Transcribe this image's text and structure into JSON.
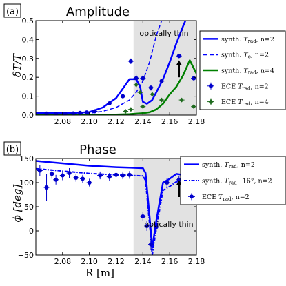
{
  "chart_data": [
    {
      "type": "line",
      "panel_label": "(a)",
      "title": "Amplitude",
      "xlabel": "R [m]",
      "ylabel": "δT/T",
      "xlim": [
        2.06,
        2.18
      ],
      "ylim": [
        0,
        0.5
      ],
      "xticks": [
        2.08,
        2.1,
        2.12,
        2.14,
        2.16,
        2.18
      ],
      "xtick_labels": [
        "2.08",
        "2.10",
        "2.12",
        "2.14",
        "2.16",
        "2.18"
      ],
      "yticks": [
        0,
        0.1,
        0.2,
        0.3,
        0.4,
        0.5
      ],
      "ytick_labels": [
        "0.0",
        "0.1",
        "0.2",
        "0.3",
        "0.4",
        "0.5"
      ],
      "shaded_region": {
        "x": [
          2.133,
          2.18
        ],
        "color": "#e2e2e2"
      },
      "annotation": "optically thin",
      "arrow": {
        "x": 2.167,
        "y_from": 0.2,
        "y_to": 0.29
      },
      "legend": {
        "position": "outside-right"
      },
      "series": [
        {
          "name": "synth. T_rad, n=2",
          "kind": "line",
          "style": "solid",
          "color": "#0000ff",
          "width": 2.5,
          "x": [
            2.06,
            2.08,
            2.09,
            2.1,
            2.11,
            2.12,
            2.125,
            2.13,
            2.135,
            2.138,
            2.14,
            2.143,
            2.147,
            2.15,
            2.155,
            2.16,
            2.165,
            2.17,
            2.173
          ],
          "y": [
            0.01,
            0.01,
            0.012,
            0.016,
            0.04,
            0.09,
            0.14,
            0.19,
            0.19,
            0.15,
            0.07,
            0.06,
            0.08,
            0.12,
            0.19,
            0.28,
            0.38,
            0.47,
            0.52
          ]
        },
        {
          "name": "synth. T_e, n=2",
          "kind": "line",
          "style": "dashed",
          "color": "#0000ff",
          "width": 1.5,
          "x": [
            2.06,
            2.08,
            2.1,
            2.11,
            2.12,
            2.13,
            2.135,
            2.14,
            2.145,
            2.15,
            2.155
          ],
          "y": [
            0.005,
            0.006,
            0.01,
            0.02,
            0.04,
            0.08,
            0.12,
            0.18,
            0.28,
            0.42,
            0.52
          ]
        },
        {
          "name": "synth. T_rad, n=4",
          "kind": "line",
          "style": "solid",
          "color": "#008000",
          "width": 2.5,
          "x": [
            2.06,
            2.1,
            2.12,
            2.13,
            2.14,
            2.145,
            2.15,
            2.155,
            2.16,
            2.165,
            2.17,
            2.175,
            2.18
          ],
          "y": [
            0.0,
            0.0,
            0.003,
            0.005,
            0.01,
            0.015,
            0.03,
            0.06,
            0.11,
            0.15,
            0.21,
            0.29,
            0.22
          ]
        },
        {
          "name": "ECE T_rad, n=2",
          "kind": "points",
          "marker": "circle",
          "color": "#0000cc",
          "x": [
            2.068,
            2.075,
            2.082,
            2.088,
            2.093,
            2.098,
            2.104,
            2.115,
            2.125,
            2.131,
            2.135,
            2.14,
            2.146,
            2.154,
            2.167,
            2.178
          ],
          "y": [
            0.008,
            0.006,
            0.007,
            0.009,
            0.012,
            0.014,
            0.02,
            0.062,
            0.1,
            0.285,
            0.195,
            0.195,
            0.145,
            0.18,
            0.313,
            0.195
          ],
          "yerr": [
            0.005,
            0.005,
            0.005,
            0.005,
            0.006,
            0.006,
            0.007,
            0.01,
            0.012,
            0.015,
            0.018,
            0.015,
            0.015,
            0.012,
            0.012,
            0.012
          ]
        },
        {
          "name": "ECE T_rad, n=4",
          "kind": "points",
          "marker": "diamond",
          "color": "#1f6b1f",
          "x": [
            2.127,
            2.131,
            2.135,
            2.138,
            2.14,
            2.147,
            2.154,
            2.169,
            2.178
          ],
          "y": [
            0.02,
            0.03,
            0.16,
            0.12,
            0.045,
            0.11,
            0.08,
            0.08,
            0.045
          ],
          "yerr": [
            0.008,
            0.008,
            0.015,
            0.012,
            0.01,
            0.012,
            0.01,
            0.01,
            0.01
          ]
        }
      ]
    },
    {
      "type": "line",
      "panel_label": "(b)",
      "title": "Phase",
      "xlabel": "R [m]",
      "ylabel": "ϕ [deg]",
      "xlim": [
        2.06,
        2.18
      ],
      "ylim": [
        -50,
        150
      ],
      "xticks": [
        2.08,
        2.1,
        2.12,
        2.14,
        2.16,
        2.18
      ],
      "xtick_labels": [
        "2.08",
        "2.10",
        "2.12",
        "2.14",
        "2.16",
        "2.18"
      ],
      "yticks": [
        -50,
        0,
        50,
        100,
        150
      ],
      "ytick_labels": [
        "−50",
        "0",
        "50",
        "100",
        "150"
      ],
      "shaded_region": {
        "x": [
          2.133,
          2.18
        ],
        "color": "#e2e2e2"
      },
      "annotation": "optically thin",
      "arrow": {
        "x": 2.167,
        "y_from": 70,
        "y_to": 105
      },
      "legend": {
        "position": "outside-top-right"
      },
      "series": [
        {
          "name": "synth. T_rad, n=2",
          "kind": "line",
          "style": "solid",
          "color": "#0000ff",
          "width": 2.5,
          "x": [
            2.06,
            2.08,
            2.1,
            2.12,
            2.13,
            2.14,
            2.142,
            2.145,
            2.147,
            2.15,
            2.155,
            2.16,
            2.165,
            2.17,
            2.18
          ],
          "y": [
            145,
            140,
            135,
            132,
            131,
            130,
            120,
            30,
            -35,
            20,
            100,
            108,
            118,
            116,
            114
          ]
        },
        {
          "name": "synth. T_rad − 16°, n=2",
          "kind": "line",
          "style": "dashdot",
          "color": "#0000ff",
          "width": 2,
          "x": [
            2.06,
            2.08,
            2.1,
            2.12,
            2.13,
            2.14,
            2.142,
            2.145,
            2.147,
            2.15,
            2.155,
            2.16,
            2.165,
            2.17,
            2.18
          ],
          "y": [
            129,
            124,
            119,
            116,
            115,
            114,
            104,
            14,
            -51,
            4,
            84,
            92,
            102,
            100,
            98
          ]
        },
        {
          "name": "ECE T_rad, n=2",
          "kind": "points",
          "marker": "circle",
          "color": "#0000cc",
          "x": [
            2.063,
            2.068,
            2.072,
            2.075,
            2.08,
            2.085,
            2.09,
            2.095,
            2.1,
            2.108,
            2.115,
            2.12,
            2.125,
            2.13,
            2.14,
            2.143,
            2.146,
            2.15,
            2.158,
            2.167,
            2.175,
            2.18
          ],
          "y": [
            125,
            90,
            118,
            106,
            115,
            120,
            110,
            108,
            100,
            115,
            112,
            116,
            115,
            116,
            30,
            10,
            -28,
            8,
            100,
            106,
            97,
            94
          ],
          "yerr": [
            12,
            28,
            10,
            10,
            10,
            10,
            8,
            8,
            8,
            8,
            8,
            8,
            8,
            8,
            10,
            10,
            12,
            10,
            10,
            8,
            8,
            8
          ]
        }
      ]
    }
  ],
  "legends": [
    {
      "entries": [
        {
          "pre": "synth. ",
          "var": "T",
          "sub": "rad",
          "post": ", n=2",
          "style": "solid",
          "color": "#0000ff"
        },
        {
          "pre": "synth. ",
          "var": "T",
          "sub": "e",
          "post": ", n=2",
          "style": "dashed",
          "color": "#0000ff"
        },
        {
          "pre": "synth. ",
          "var": "T",
          "sub": "rad",
          "post": ", n=4",
          "style": "solid",
          "color": "#008000"
        },
        {
          "pre": "ECE ",
          "var": "T",
          "sub": "rad",
          "post": ", n=2",
          "style": "marker-circle",
          "color": "#0000cc"
        },
        {
          "pre": "ECE ",
          "var": "T",
          "sub": "rad",
          "post": ", n=4",
          "style": "marker-diamond",
          "color": "#1f6b1f"
        }
      ]
    },
    {
      "entries": [
        {
          "pre": "synth. ",
          "var": "T",
          "sub": "rad",
          "post": ", n=2",
          "style": "solid",
          "color": "#0000ff"
        },
        {
          "pre": "synth. ",
          "var": "T",
          "sub": "rad",
          "post": "−16°, n=2",
          "style": "dashdot",
          "color": "#0000ff"
        },
        {
          "pre": "ECE ",
          "var": "T",
          "sub": "rad",
          "post": ", n=2",
          "style": "marker-circle",
          "color": "#0000cc"
        }
      ]
    }
  ]
}
